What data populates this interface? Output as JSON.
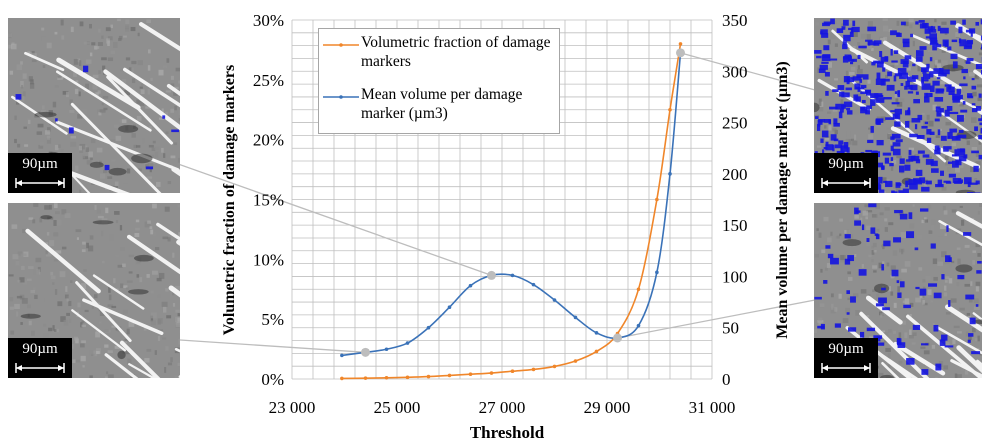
{
  "colors": {
    "series_volumetric": "#f0862a",
    "series_mean_volume": "#3a72b8",
    "grid": "#bfbfbf",
    "highlight": "#bdbdbd",
    "damage_overlay": "#1414e0"
  },
  "panels": [
    {
      "id": "top-left",
      "scale_label": "90µm",
      "overlay": "sparse"
    },
    {
      "id": "bottom-left",
      "scale_label": "90µm",
      "overlay": "none"
    },
    {
      "id": "top-right",
      "scale_label": "90µm",
      "overlay": "dense"
    },
    {
      "id": "bottom-right",
      "scale_label": "90µm",
      "overlay": "moderate"
    }
  ],
  "chart_data": {
    "type": "line",
    "xlabel": "Threshold",
    "ylabel_left": "Volumetric fraction of damage markers",
    "ylabel_right": "Mean volume per damage marker (µm3)",
    "xlim": [
      23000,
      31000
    ],
    "x_ticks": [
      23000,
      25000,
      27000,
      29000,
      31000
    ],
    "x_tick_labels": [
      "23 000",
      "25 000",
      "27 000",
      "29 000",
      "31 000"
    ],
    "ylim_left": [
      0,
      0.3
    ],
    "y_left_ticks": [
      0,
      0.05,
      0.1,
      0.15,
      0.2,
      0.25,
      0.3
    ],
    "y_left_tick_labels": [
      "0%",
      "5%",
      "10%",
      "15%",
      "20%",
      "25%",
      "30%"
    ],
    "ylim_right": [
      0,
      350
    ],
    "y_right_ticks": [
      0,
      50,
      100,
      150,
      200,
      250,
      300,
      350
    ],
    "y_right_tick_labels": [
      "0",
      "50",
      "100",
      "150",
      "200",
      "250",
      "300",
      "350"
    ],
    "grid": true,
    "legend_position": "top-left",
    "series": [
      {
        "name": "Volumetric fraction of damage markers",
        "axis": "left",
        "x": [
          23950,
          24400,
          24800,
          25200,
          25600,
          26000,
          26400,
          26800,
          27200,
          27600,
          28000,
          28400,
          28800,
          29200,
          29600,
          29950,
          30200,
          30400
        ],
        "values": [
          0.0005,
          0.0007,
          0.001,
          0.0014,
          0.002,
          0.003,
          0.004,
          0.005,
          0.0065,
          0.008,
          0.0105,
          0.015,
          0.023,
          0.038,
          0.075,
          0.15,
          0.225,
          0.28
        ]
      },
      {
        "name": "Mean volume per damage marker (µm3)",
        "axis": "right",
        "x": [
          23950,
          24400,
          24800,
          25200,
          25600,
          26000,
          26400,
          26800,
          27200,
          27600,
          28000,
          28400,
          28800,
          29200,
          29600,
          29950,
          30200,
          30400
        ],
        "values": [
          23,
          26,
          29,
          35,
          50,
          70,
          91,
          101,
          101,
          92,
          77,
          60,
          45,
          40,
          52,
          104,
          200,
          318
        ]
      }
    ],
    "highlight_points": [
      {
        "x": 24400,
        "y_right": 26
      },
      {
        "x": 26800,
        "y_right": 101
      },
      {
        "x": 29200,
        "y_right": 40
      },
      {
        "x": 30400,
        "y_right": 318
      }
    ]
  }
}
